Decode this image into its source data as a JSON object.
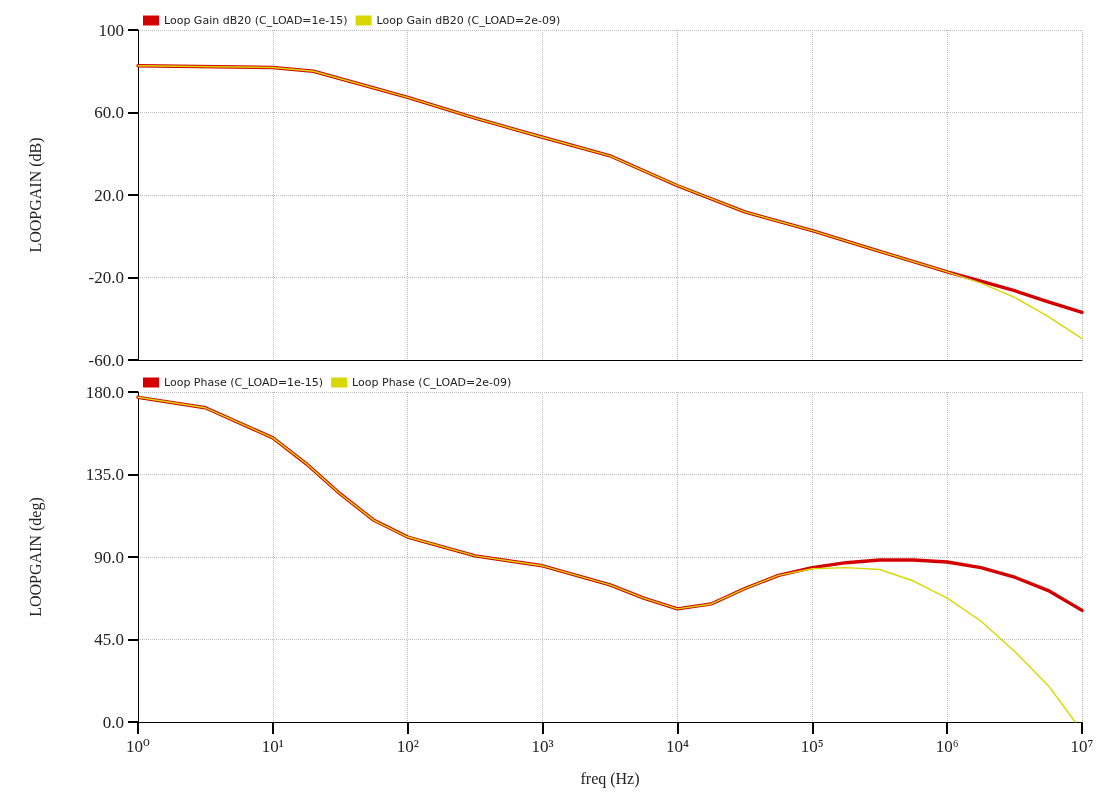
{
  "chart_data": [
    {
      "type": "line",
      "ylabel": "LOOPGAIN (dB)",
      "legend": "top left",
      "grid": true,
      "marker": "none",
      "log": "x",
      "tick_labels": "y",
      "xlim": [
        1,
        10000000
      ],
      "ylim": [
        -60,
        100
      ],
      "yticks": [
        {
          "value": -60,
          "label": "-60.0"
        },
        {
          "value": -20,
          "label": "-20.0"
        },
        {
          "value": 20,
          "label": "20.0"
        },
        {
          "value": 60,
          "label": "60.0"
        },
        100
      ],
      "x": [
        1,
        10,
        20,
        100,
        316,
        1000,
        3162,
        10000,
        31623,
        100000,
        316228,
        1000000,
        1778279,
        3162278,
        5623413,
        10000000
      ],
      "series": [
        {
          "name": "Loop Gain dB20 (C_LOAD=1e-15)",
          "color": "#d40000",
          "values": [
            82.7,
            81.8,
            80,
            67.3,
            57.3,
            48,
            39,
            24.5,
            11.8,
            2.7,
            -7.3,
            -17.3,
            -21.8,
            -26.4,
            -31.8,
            -36.9
          ]
        },
        {
          "name": "Loop Gain dB20 (C_LOAD=2e-09)",
          "color": "#d8d800",
          "values": [
            82.7,
            81.8,
            80,
            67.3,
            57.3,
            48,
            39,
            24.5,
            11.8,
            2.7,
            -7.3,
            -17.3,
            -22.7,
            -29.6,
            -39,
            -49.6
          ]
        }
      ]
    },
    {
      "type": "line",
      "xlabel": "freq (Hz)",
      "ylabel": "LOOPGAIN (deg)",
      "legend": "top left",
      "grid": true,
      "marker": "none",
      "log": "x",
      "xlim": [
        1,
        10000000
      ],
      "xticks": [
        {
          "value": 1,
          "label": "10⁰"
        },
        {
          "value": 10,
          "label": "10¹"
        },
        {
          "value": 100,
          "label": "10²"
        },
        {
          "value": 1000,
          "label": "10³"
        },
        {
          "value": 10000,
          "label": "10⁴"
        },
        {
          "value": 100000,
          "label": "10⁵"
        },
        {
          "value": 1000000,
          "label": "10⁶"
        },
        {
          "value": 10000000,
          "label": "10⁷"
        }
      ],
      "ylim": [
        0,
        180
      ],
      "yticks": [
        {
          "value": 0,
          "label": "0.0"
        },
        {
          "value": 45,
          "label": "45.0"
        },
        {
          "value": 90,
          "label": "90.0"
        },
        {
          "value": 135,
          "label": "135.0"
        },
        {
          "value": 180,
          "label": "180.0"
        }
      ],
      "series": [
        {
          "name": "Loop Phase (C_LOAD=1e-15)",
          "color": "#d40000",
          "x": [
            1,
            3.16,
            10,
            17.8,
            31.6,
            56.2,
            100,
            316,
            1000,
            3162,
            5623,
            10000,
            17783,
            31623,
            56234,
            100000,
            177828,
            316228,
            562341,
            1000000,
            1778279,
            3162278,
            5623413,
            10000000
          ],
          "values": [
            177.1,
            171.4,
            155,
            140.7,
            124.4,
            110,
            100.9,
            90.6,
            85.2,
            74.8,
            67.6,
            61.7,
            64.4,
            72.8,
            80,
            84.2,
            86.9,
            88.4,
            88.4,
            87.3,
            84.2,
            79,
            71.7,
            60.9
          ]
        },
        {
          "name": "Loop Phase (C_LOAD=2e-09)",
          "color": "#d8d800",
          "x": [
            1,
            3.16,
            10,
            17.8,
            31.6,
            56.2,
            100,
            316,
            1000,
            3162,
            5623,
            10000,
            17783,
            31623,
            56234,
            100000,
            177828,
            316228,
            562341,
            1000000,
            1778279,
            3162278,
            5623413,
            8912509
          ],
          "values": [
            177.1,
            171.4,
            155,
            140.7,
            124.4,
            110,
            100.9,
            90.6,
            85.2,
            74.8,
            67.6,
            61.7,
            64.4,
            72.8,
            80,
            83.6,
            84.2,
            83.2,
            76.9,
            67.6,
            55.1,
            38.5,
            19.8,
            0
          ]
        }
      ]
    }
  ]
}
